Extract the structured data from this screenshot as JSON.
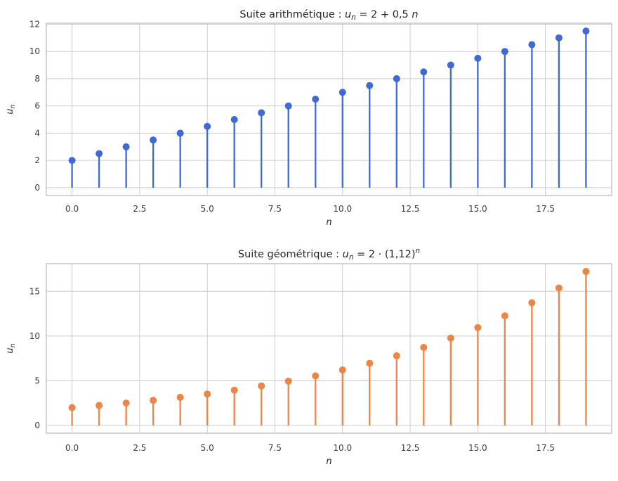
{
  "figure": {
    "background": "#ffffff",
    "grid_color": "#cccccc",
    "spine_color": "#c6c6c6",
    "text_color": "#262626",
    "tick_label_color": "#3a3a3a"
  },
  "chart_data": [
    {
      "type": "stem",
      "title": "Suite arithmétique : uₙ = 2 + 0,5 n",
      "title_parts": [
        {
          "t": "Suite arithmétique : "
        },
        {
          "t": "u",
          "i": 1
        },
        {
          "t": "n",
          "i": 1,
          "sub": 1
        },
        {
          "t": " = 2 + 0,5 "
        },
        {
          "t": "n",
          "i": 1
        }
      ],
      "xlabel": "n",
      "xlabel_parts": [
        {
          "t": "n",
          "i": 1
        }
      ],
      "ylabel": "uₙ",
      "ylabel_parts": [
        {
          "t": "u",
          "i": 1
        },
        {
          "t": "n",
          "i": 1,
          "sub": 1
        }
      ],
      "color": "#4169d6",
      "x": [
        0,
        1,
        2,
        3,
        4,
        5,
        6,
        7,
        8,
        9,
        10,
        11,
        12,
        13,
        14,
        15,
        16,
        17,
        18,
        19
      ],
      "values": [
        2.0,
        2.5,
        3.0,
        3.5,
        4.0,
        4.5,
        5.0,
        5.5,
        6.0,
        6.5,
        7.0,
        7.5,
        8.0,
        8.5,
        9.0,
        9.5,
        10.0,
        10.5,
        11.0,
        11.5
      ],
      "baseline": 0,
      "xlim": [
        -0.95,
        19.95
      ],
      "ylim": [
        -0.575,
        12.075
      ],
      "xticks": [
        0,
        2.5,
        5,
        7.5,
        10,
        12.5,
        15,
        17.5
      ],
      "xtick_labels": [
        "0.0",
        "2.5",
        "5.0",
        "7.5",
        "10.0",
        "12.5",
        "15.0",
        "17.5"
      ],
      "yticks": [
        0,
        2,
        4,
        6,
        8,
        10,
        12
      ],
      "ytick_labels": [
        "0",
        "2",
        "4",
        "6",
        "8",
        "10",
        "12"
      ],
      "grid": true,
      "legend": null
    },
    {
      "type": "stem",
      "title": "Suite géométrique : uₙ = 2 · (1,12)ⁿ",
      "title_parts": [
        {
          "t": "Suite géométrique : "
        },
        {
          "t": "u",
          "i": 1
        },
        {
          "t": "n",
          "i": 1,
          "sub": 1
        },
        {
          "t": " = 2 · (1,12)"
        },
        {
          "t": "n",
          "i": 1,
          "sup": 1
        }
      ],
      "xlabel": "n",
      "xlabel_parts": [
        {
          "t": "n",
          "i": 1
        }
      ],
      "ylabel": "uₙ",
      "ylabel_parts": [
        {
          "t": "u",
          "i": 1
        },
        {
          "t": "n",
          "i": 1,
          "sub": 1
        }
      ],
      "color": "#ed8546",
      "x": [
        0,
        1,
        2,
        3,
        4,
        5,
        6,
        7,
        8,
        9,
        10,
        11,
        12,
        13,
        14,
        15,
        16,
        17,
        18,
        19
      ],
      "values": [
        2.0,
        2.24,
        2.5088,
        2.8099,
        3.147,
        3.5247,
        3.9476,
        4.4214,
        4.9519,
        5.5461,
        6.2117,
        6.9571,
        7.7919,
        8.727,
        9.7742,
        10.9471,
        12.2608,
        13.7321,
        15.3799,
        17.2275
      ],
      "baseline": 0,
      "xlim": [
        -0.95,
        19.95
      ],
      "ylim": [
        -0.8614,
        18.0889
      ],
      "xticks": [
        0,
        2.5,
        5,
        7.5,
        10,
        12.5,
        15,
        17.5
      ],
      "xtick_labels": [
        "0.0",
        "2.5",
        "5.0",
        "7.5",
        "10.0",
        "12.5",
        "15.0",
        "17.5"
      ],
      "yticks": [
        0,
        5,
        10,
        15
      ],
      "ytick_labels": [
        "0",
        "5",
        "10",
        "15"
      ],
      "grid": true,
      "legend": null
    }
  ]
}
